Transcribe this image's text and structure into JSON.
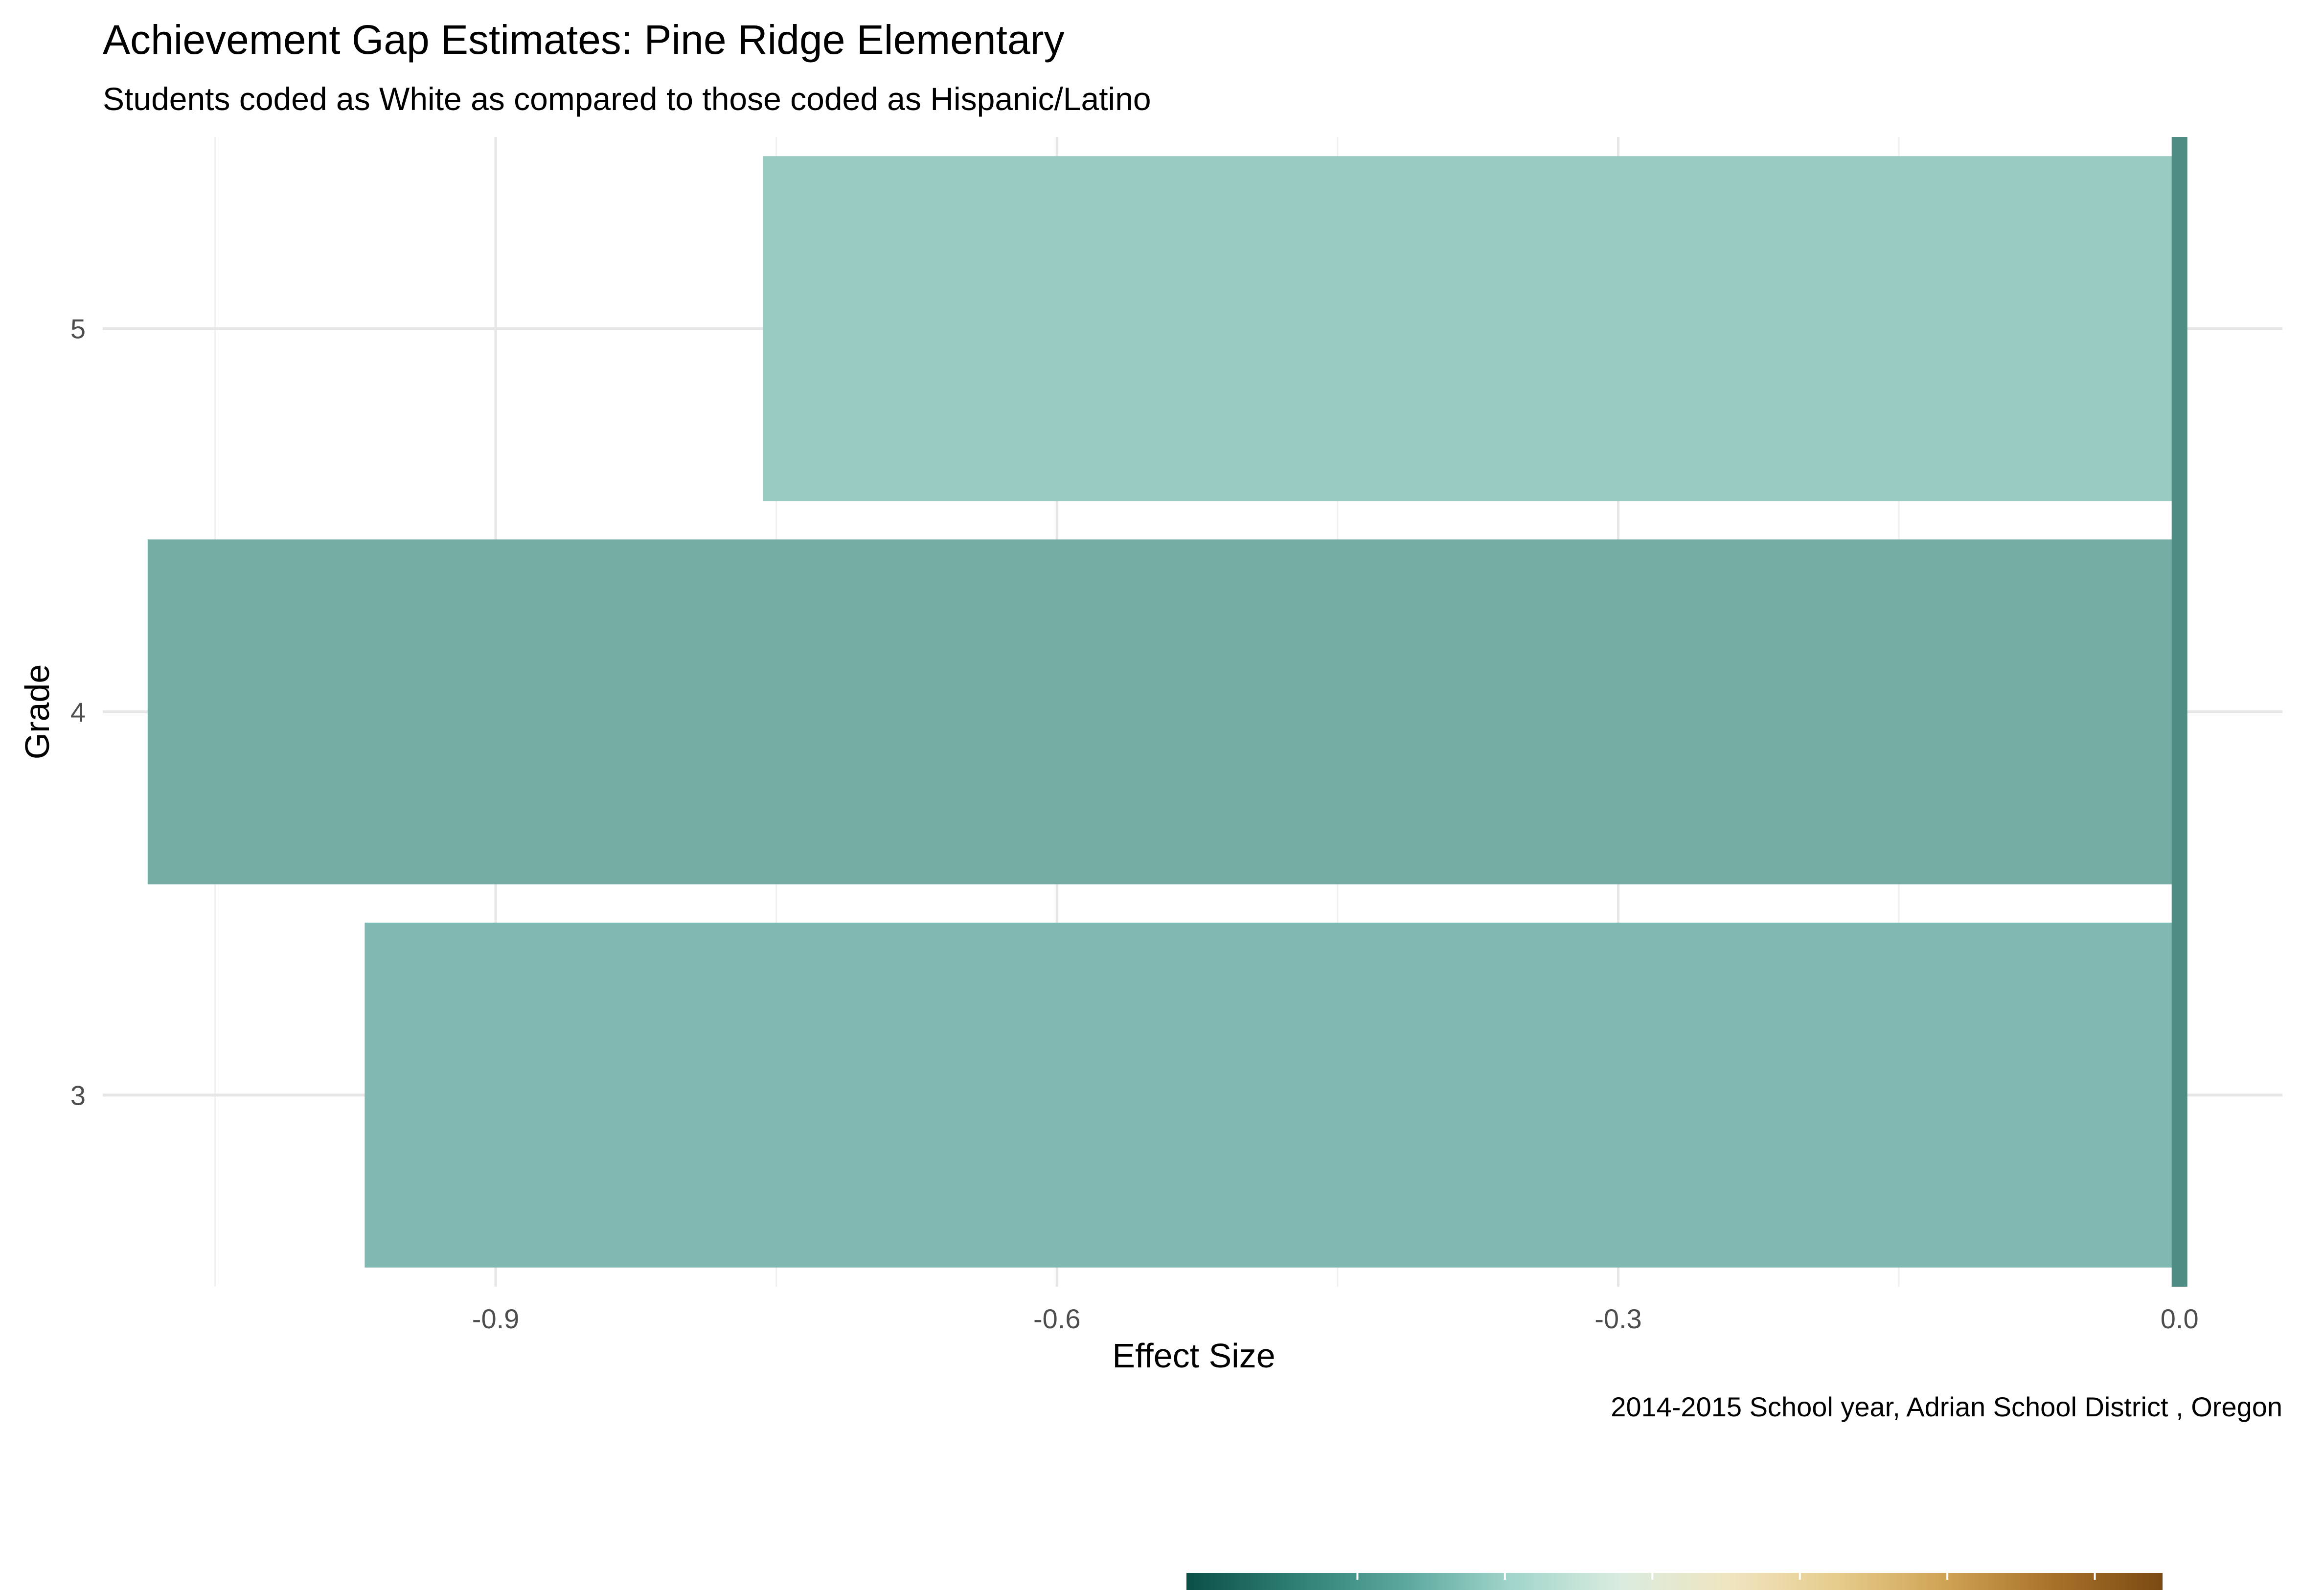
{
  "chart_data": {
    "type": "bar",
    "orientation": "horizontal",
    "title": "Achievement Gap Estimates: Pine Ridge Elementary",
    "subtitle": "Students coded as White as compared to those coded as Hispanic/Latino",
    "xlabel": "Effect Size",
    "ylabel": "Grade",
    "caption": "2014-2015 School year,  Adrian School District , Oregon",
    "categories": [
      "3",
      "4",
      "5"
    ],
    "values": [
      -0.97,
      -1.086,
      -0.757
    ],
    "bar_colors": [
      "#7bb7af",
      "#71aaa1",
      "#96c9c1"
    ],
    "xlim": [
      -1.11,
      0.055
    ],
    "xticks": [
      -0.9,
      -0.6,
      -0.3,
      0.0
    ],
    "xtick_labels": [
      "-0.9",
      "-0.6",
      "-0.3",
      "0.0"
    ],
    "reference_line": {
      "x": 0.0,
      "color": "#4f8c84"
    },
    "grid": true,
    "legend": "bottom",
    "legend_gradient": [
      "#0b4f46",
      "#2f7f74",
      "#5aa79d",
      "#a2d5cb",
      "#d9ecdf",
      "#f0e5c1",
      "#e6cc8c",
      "#cfa354",
      "#a8712a",
      "#7a4a12"
    ]
  }
}
